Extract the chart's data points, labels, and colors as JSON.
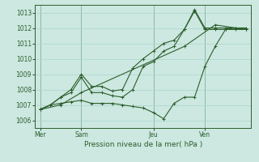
{
  "xlabel": "Pression niveau de la mer( hPa )",
  "ylim": [
    1005.5,
    1013.5
  ],
  "background_color": "#cce8e0",
  "grid_color": "#aad4cc",
  "line_color": "#2d5e2d",
  "tick_label_color": "#2d5e2d",
  "xlabel_color": "#2d5e2d",
  "day_labels": [
    "Mer",
    "Sam",
    "Jeu",
    "Ven"
  ],
  "yticks": [
    1006,
    1007,
    1008,
    1009,
    1010,
    1011,
    1012,
    1013
  ],
  "series1_x": [
    0,
    1,
    2,
    3,
    4,
    5,
    6,
    7,
    8,
    9,
    10,
    11,
    12,
    13,
    14,
    15,
    16,
    17,
    18,
    19,
    20
  ],
  "series1_y": [
    1006.7,
    1007.0,
    1007.1,
    1007.2,
    1007.3,
    1007.1,
    1007.1,
    1007.1,
    1007.0,
    1006.9,
    1006.8,
    1006.5,
    1006.1,
    1007.1,
    1007.5,
    1007.5,
    1009.5,
    1010.8,
    1011.9,
    1012.0,
    1011.9
  ],
  "series2_x": [
    0,
    1,
    2,
    3,
    4,
    5,
    6,
    7,
    8,
    9,
    10,
    11,
    12,
    13,
    14,
    15,
    16,
    17,
    18,
    19,
    20
  ],
  "series2_y": [
    1006.7,
    1007.0,
    1007.5,
    1007.8,
    1008.8,
    1007.8,
    1007.8,
    1007.6,
    1007.5,
    1008.0,
    1009.5,
    1009.8,
    1010.5,
    1010.8,
    1011.9,
    1013.1,
    1011.9,
    1011.9,
    1011.9,
    1011.9,
    1011.9
  ],
  "series3_x": [
    0,
    1,
    2,
    3,
    4,
    5,
    6,
    7,
    8,
    9,
    10,
    11,
    12,
    13,
    14,
    15,
    16,
    17,
    18,
    19,
    20
  ],
  "series3_y": [
    1006.7,
    1007.0,
    1007.5,
    1008.0,
    1009.0,
    1008.2,
    1008.2,
    1007.9,
    1008.0,
    1009.4,
    1010.0,
    1010.5,
    1011.0,
    1011.2,
    1011.9,
    1013.2,
    1012.0,
    1012.0,
    1012.0,
    1012.0,
    1012.0
  ],
  "series4_x": [
    0,
    2,
    4,
    14,
    17,
    20
  ],
  "series4_y": [
    1006.7,
    1007.0,
    1007.8,
    1010.8,
    1012.2,
    1011.9
  ]
}
